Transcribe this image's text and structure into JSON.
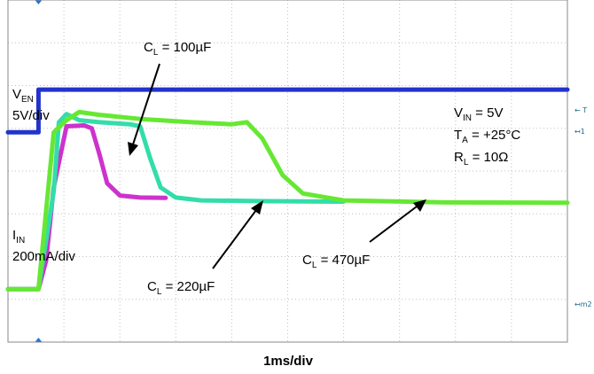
{
  "chart_data": {
    "type": "line",
    "title": "",
    "xlabel": "1ms/div",
    "ylabel": "",
    "grid": true,
    "x_unit": "ms",
    "xlim": [
      -0.6,
      10.4
    ],
    "y_div": [
      -4.2,
      4.2
    ],
    "conditions": [
      {
        "sym": "V",
        "sub": "IN",
        "val": " = 5V"
      },
      {
        "sym": "T",
        "sub": "A",
        "val": " = +25°C"
      },
      {
        "sym": "R",
        "sub": "L",
        "val": " = 10Ω"
      }
    ],
    "channels": [
      {
        "sym": "V",
        "sub": "EN",
        "scale": "5V/div"
      },
      {
        "sym": "I",
        "sub": "IN",
        "scale": "200mA/div"
      }
    ],
    "annotations": [
      {
        "sym": "C",
        "sub": "L",
        "val": " = 100µF"
      },
      {
        "sym": "C",
        "sub": "L",
        "val": " = 220µF"
      },
      {
        "sym": "C",
        "sub": "L",
        "val": " = 470µF"
      }
    ],
    "markers": [
      "T",
      "1",
      "m2"
    ],
    "colors": {
      "ven": "#2233cc",
      "c100": "#cc33cc",
      "c220": "#33ddaa",
      "c470": "#66e833",
      "grid": "#c0c0c0",
      "frame": "#888888"
    },
    "series": [
      {
        "key": "ven",
        "x": [
          -0.6,
          0.0,
          0.0,
          10.4
        ],
        "y": [
          0.95,
          0.95,
          2.0,
          2.0
        ]
      },
      {
        "key": "c100",
        "x": [
          -0.6,
          0.0,
          0.15,
          0.3,
          0.55,
          0.9,
          1.05,
          1.2,
          1.35,
          1.6,
          2.0,
          2.5
        ],
        "y": [
          -2.9,
          -2.9,
          -2.2,
          -0.4,
          1.1,
          1.12,
          1.05,
          0.4,
          -0.3,
          -0.6,
          -0.65,
          -0.66
        ]
      },
      {
        "key": "c220",
        "x": [
          -0.6,
          0.0,
          0.3,
          0.4,
          0.55,
          0.8,
          1.2,
          1.8,
          2.0,
          2.2,
          2.4,
          2.7,
          3.2,
          4.5,
          6.0
        ],
        "y": [
          -2.9,
          -2.9,
          -0.5,
          1.2,
          1.4,
          1.25,
          1.2,
          1.15,
          1.1,
          0.3,
          -0.4,
          -0.65,
          -0.72,
          -0.74,
          -0.75
        ]
      },
      {
        "key": "c470",
        "x": [
          -0.6,
          0.0,
          0.3,
          0.55,
          0.8,
          1.2,
          2.0,
          3.0,
          3.8,
          4.1,
          4.4,
          4.8,
          5.2,
          6.0,
          8.0,
          10.4
        ],
        "y": [
          -2.9,
          -2.9,
          0.95,
          1.25,
          1.45,
          1.38,
          1.28,
          1.2,
          1.15,
          1.2,
          0.8,
          -0.1,
          -0.55,
          -0.72,
          -0.77,
          -0.78
        ]
      }
    ]
  }
}
